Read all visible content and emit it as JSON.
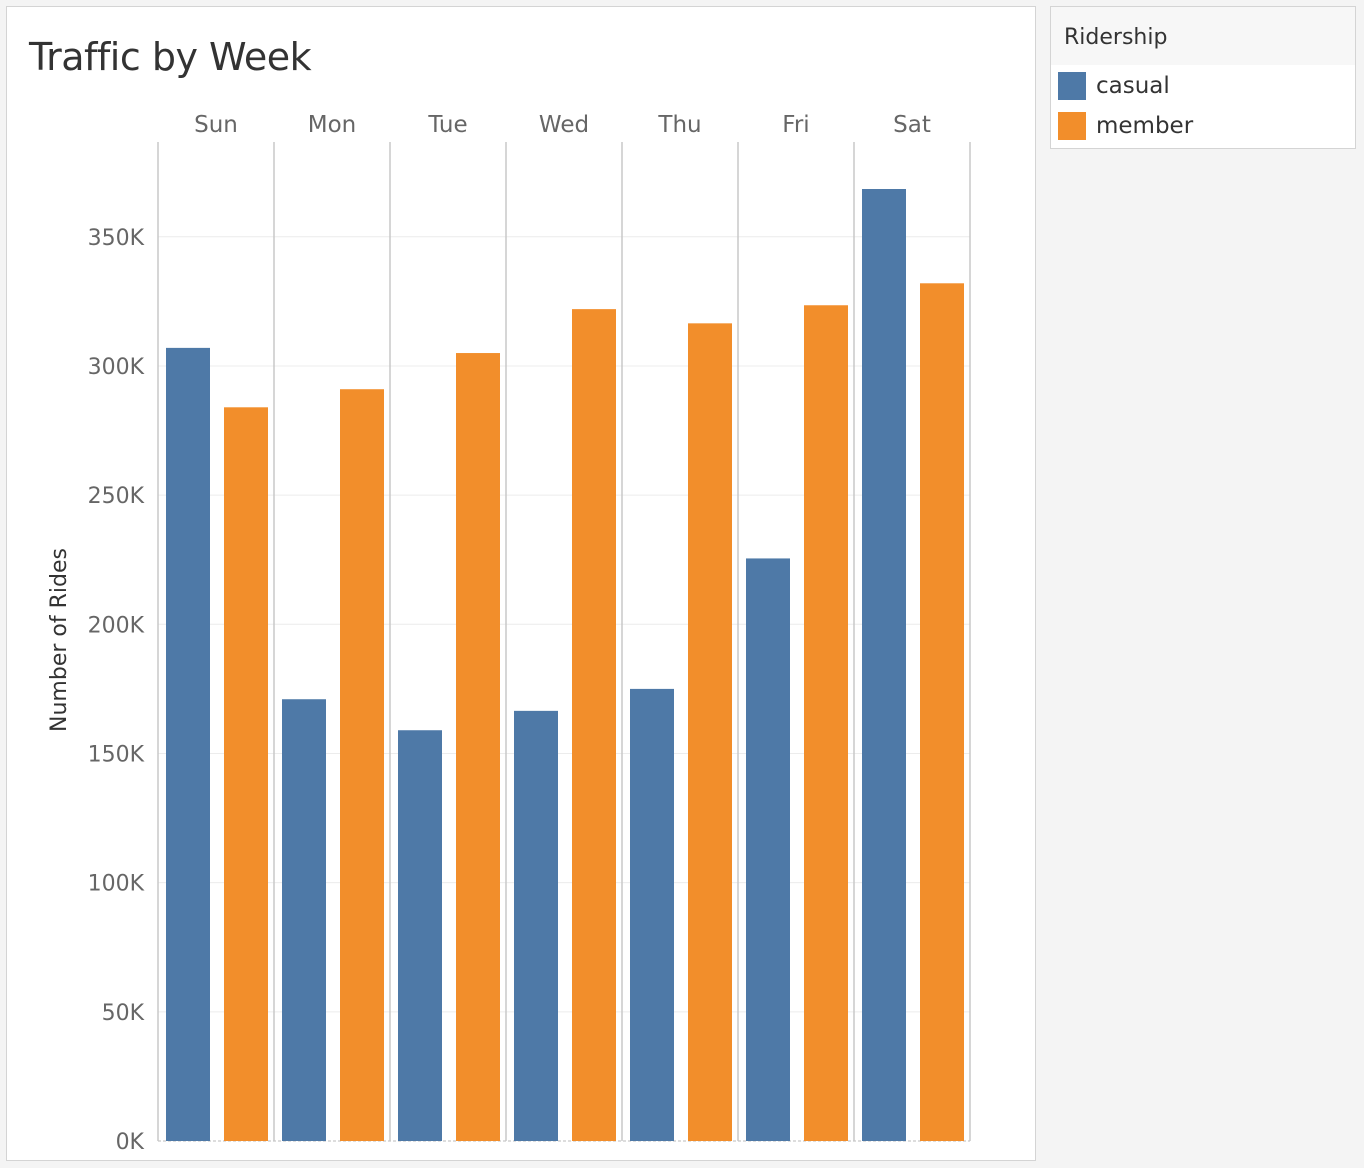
{
  "chart_data": {
    "type": "bar",
    "title": "Traffic by Week",
    "xlabel": "",
    "ylabel": "Number of Rides",
    "categories": [
      "Sun",
      "Mon",
      "Tue",
      "Wed",
      "Thu",
      "Fri",
      "Sat"
    ],
    "series": [
      {
        "name": "casual",
        "values": [
          307000,
          171000,
          159000,
          166500,
          175000,
          225500,
          368500
        ]
      },
      {
        "name": "member",
        "values": [
          284000,
          291000,
          305000,
          322000,
          316500,
          323500,
          332000
        ]
      }
    ],
    "ylim": [
      0,
      380000
    ],
    "yticks": [
      0,
      50000,
      100000,
      150000,
      200000,
      250000,
      300000,
      350000
    ],
    "ytick_labels": [
      "0K",
      "50K",
      "100K",
      "150K",
      "200K",
      "250K",
      "300K",
      "350K"
    ],
    "grid": true,
    "legend_position": "top-right"
  },
  "legend": {
    "title": "Ridership",
    "items": [
      {
        "label": "casual",
        "color": "#4e79a7"
      },
      {
        "label": "member",
        "color": "#f28e2b"
      }
    ]
  },
  "colors": {
    "casual": "#4e79a7",
    "member": "#f28e2b"
  }
}
